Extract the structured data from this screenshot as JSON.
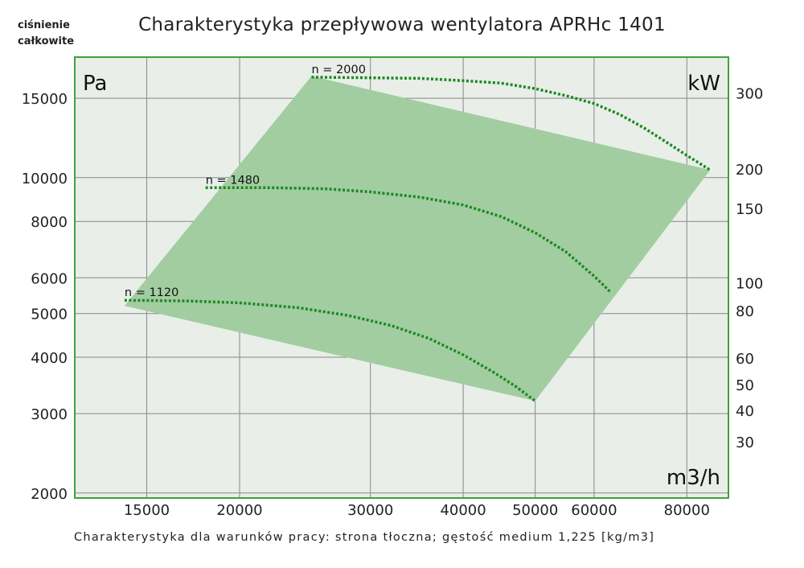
{
  "chart_data": {
    "type": "line",
    "title": "Charakterystyka przepływowa wentylatora APRHc 1401",
    "subtitle": "Charakterystyka dla warunków pracy: strona tłoczna; gęstość medium 1,225 [kg/m3]",
    "ylabel_corner": [
      "ciśnienie",
      "całkowite"
    ],
    "y_unit": "Pa",
    "y2_unit": "kW",
    "x_unit": "m3/h",
    "x_scale": "log",
    "y_scale": "log",
    "xlim": [
      12000,
      91000
    ],
    "ylim": [
      1950,
      18500
    ],
    "x_ticks": [
      15000,
      20000,
      30000,
      40000,
      50000,
      60000,
      80000
    ],
    "y_ticks": [
      2000,
      3000,
      4000,
      5000,
      6000,
      8000,
      10000,
      15000
    ],
    "y2_ticks": [
      30,
      40,
      50,
      60,
      80,
      100,
      150,
      200,
      300
    ],
    "y2_tick_pa": [
      2600,
      3050,
      3480,
      3980,
      5080,
      5850,
      8550,
      10450,
      15400
    ],
    "region": [
      {
        "x": 14000,
        "y": 5200
      },
      {
        "x": 25000,
        "y": 16800
      },
      {
        "x": 86000,
        "y": 10400
      },
      {
        "x": 50000,
        "y": 3200
      }
    ],
    "series": [
      {
        "name": "n = 2000",
        "x": [
          25000,
          30000,
          35000,
          40000,
          45000,
          50000,
          55000,
          60000,
          65000,
          70000,
          75000,
          80000,
          86000
        ],
        "y": [
          16700,
          16650,
          16600,
          16400,
          16200,
          15750,
          15200,
          14600,
          13800,
          12900,
          12000,
          11200,
          10400
        ]
      },
      {
        "name": "n = 1480",
        "x": [
          18000,
          22000,
          26000,
          30000,
          35000,
          40000,
          45000,
          50000,
          55000,
          60000,
          63000
        ],
        "y": [
          9500,
          9500,
          9450,
          9300,
          9050,
          8700,
          8200,
          7550,
          6850,
          6050,
          5600
        ]
      },
      {
        "name": "n = 1120",
        "x": [
          14000,
          17000,
          20000,
          24000,
          28000,
          32000,
          36000,
          40000,
          44000,
          47000,
          50000
        ],
        "y": [
          5350,
          5330,
          5280,
          5150,
          4950,
          4700,
          4400,
          4050,
          3700,
          3450,
          3200
        ]
      }
    ]
  }
}
